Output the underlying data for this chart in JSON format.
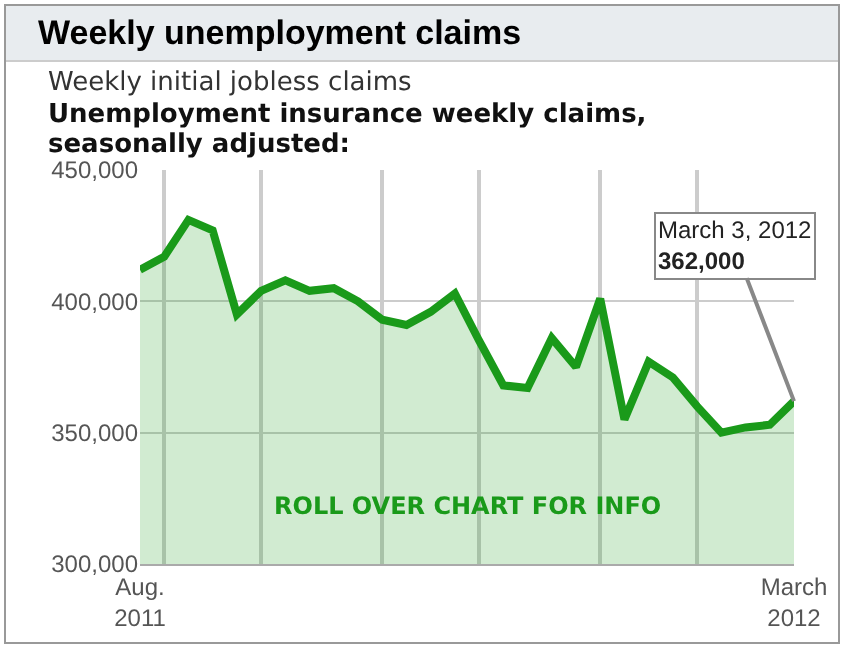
{
  "chart_data": {
    "type": "area",
    "title": "Weekly unemployment claims",
    "subtitle": "Weekly initial jobless claims",
    "annotations": [
      "Unemployment insurance weekly claims,\nseasonally adjusted:",
      {
        "text": "March 3, 2012\n362,000",
        "x": "2012-03-03",
        "y": 362000
      },
      "ROLL OVER CHART FOR INFO"
    ],
    "x": [
      "2011-08-27",
      "2011-09-03",
      "2011-09-10",
      "2011-09-17",
      "2011-09-24",
      "2011-10-01",
      "2011-10-08",
      "2011-10-15",
      "2011-10-22",
      "2011-10-29",
      "2011-11-05",
      "2011-11-12",
      "2011-11-19",
      "2011-11-26",
      "2011-12-03",
      "2011-12-10",
      "2011-12-17",
      "2011-12-24",
      "2011-12-31",
      "2012-01-07",
      "2012-01-14",
      "2012-01-21",
      "2012-01-28",
      "2012-02-04",
      "2012-02-11",
      "2012-02-18",
      "2012-02-25",
      "2012-03-03"
    ],
    "series": [
      {
        "color": "#1a9a1a",
        "values": [
          412000,
          417000,
          431000,
          427000,
          395000,
          404000,
          408000,
          404000,
          405000,
          400000,
          393000,
          391000,
          396000,
          403000,
          385000,
          368000,
          367000,
          386000,
          375000,
          401000,
          355000,
          377000,
          371000,
          360000,
          350000,
          352000,
          353000,
          362000
        ]
      }
    ],
    "xlim": [
      "2011-08-27",
      "2012-03-03"
    ],
    "xticks": [
      {
        "value": "2011-08-27",
        "label": "Aug.\n2011"
      },
      {
        "value": "2011-09-03",
        "label": null
      },
      {
        "value": "2011-10-01",
        "label": null
      },
      {
        "value": "2011-11-05",
        "label": null
      },
      {
        "value": "2011-12-03",
        "label": null
      },
      {
        "value": "2012-01-07",
        "label": null
      },
      {
        "value": "2012-02-04",
        "label": null
      },
      {
        "value": "2012-03-03",
        "label": "March\n2012"
      }
    ],
    "ylim": [
      300000,
      450000
    ],
    "yticks": [
      {
        "value": 300000,
        "label": "300,000"
      },
      {
        "value": 350000,
        "label": "350,000"
      },
      {
        "value": 400000,
        "label": "400,000"
      },
      {
        "value": 450000,
        "label": "450,000"
      }
    ],
    "grid": true,
    "marker": "none",
    "line_style": "solid"
  }
}
